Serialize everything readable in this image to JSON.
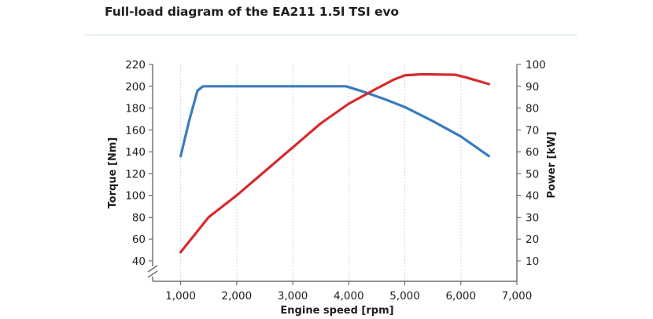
{
  "header": {
    "title": "Full-load diagram of the EA211 1.5l TSI evo"
  },
  "chart_data": {
    "type": "line",
    "title": "Full-load diagram of the EA211 1.5l TSI evo",
    "xlabel": "Engine speed [rpm]",
    "ylabel_left": "Torque [Nm]",
    "ylabel_right": "Power [kW]",
    "xlim": [
      500,
      7000
    ],
    "ylim_left": [
      20,
      220
    ],
    "ylim_right": [
      0,
      100
    ],
    "axis_break": "left-axis-bottom",
    "grid": "vertical",
    "x_ticks": [
      1000,
      2000,
      3000,
      4000,
      5000,
      6000,
      7000
    ],
    "x_tick_labels": [
      "1,000",
      "2,000",
      "3,000",
      "4,000",
      "5,000",
      "6,000",
      "7,000"
    ],
    "y_left_ticks": [
      40,
      60,
      80,
      100,
      120,
      140,
      160,
      180,
      200,
      220
    ],
    "y_left_tick_labels": [
      "40",
      "60",
      "80",
      "100",
      "120",
      "140",
      "160",
      "180",
      "200",
      "220"
    ],
    "y_right_ticks": [
      10,
      20,
      30,
      40,
      50,
      60,
      70,
      80,
      90,
      100
    ],
    "y_right_tick_labels": [
      "10",
      "20",
      "30",
      "40",
      "50",
      "60",
      "70",
      "80",
      "90",
      "100"
    ],
    "series": [
      {
        "axis": "left",
        "color": "#3a7bc0",
        "points": [
          [
            1000,
            136
          ],
          [
            1150,
            168
          ],
          [
            1300,
            196
          ],
          [
            1400,
            200
          ],
          [
            2000,
            200
          ],
          [
            3000,
            200
          ],
          [
            3950,
            200
          ],
          [
            4200,
            196
          ],
          [
            4600,
            189
          ],
          [
            5000,
            181
          ],
          [
            5500,
            168
          ],
          [
            6000,
            154
          ],
          [
            6500,
            136
          ]
        ]
      },
      {
        "axis": "right",
        "color": "#d52b2f",
        "points": [
          [
            1000,
            14
          ],
          [
            1250,
            22
          ],
          [
            1500,
            30
          ],
          [
            2000,
            40
          ],
          [
            2500,
            51
          ],
          [
            3000,
            62
          ],
          [
            3500,
            73
          ],
          [
            4000,
            82
          ],
          [
            4500,
            89
          ],
          [
            4800,
            93
          ],
          [
            5000,
            95
          ],
          [
            5300,
            95.5
          ],
          [
            5900,
            95.3
          ],
          [
            6100,
            94
          ],
          [
            6500,
            91
          ]
        ]
      }
    ]
  }
}
